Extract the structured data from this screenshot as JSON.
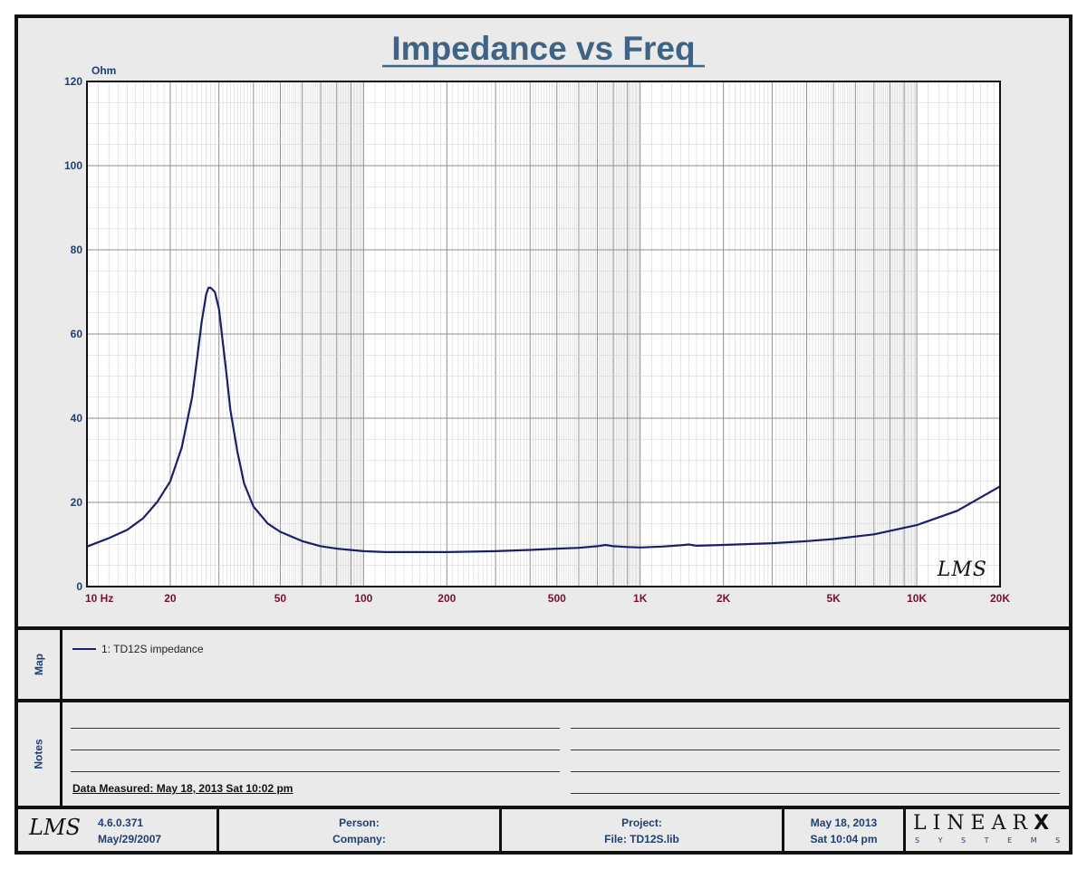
{
  "chart_data": {
    "type": "line",
    "title": "Impedance vs Freq",
    "xlabel": "",
    "ylabel": "Ohm",
    "x_scale": "log",
    "xlim": [
      10,
      20000
    ],
    "ylim": [
      0,
      120
    ],
    "y_ticks": [
      "0",
      "20",
      "40",
      "60",
      "80",
      "100",
      "120"
    ],
    "x_tick_labels": [
      {
        "f": 10,
        "label": "10  Hz"
      },
      {
        "f": 20,
        "label": "20"
      },
      {
        "f": 50,
        "label": "50"
      },
      {
        "f": 100,
        "label": "100"
      },
      {
        "f": 200,
        "label": "200"
      },
      {
        "f": 500,
        "label": "500"
      },
      {
        "f": 1000,
        "label": "1K"
      },
      {
        "f": 2000,
        "label": "2K"
      },
      {
        "f": 5000,
        "label": "5K"
      },
      {
        "f": 10000,
        "label": "10K"
      },
      {
        "f": 20000,
        "label": "20K"
      }
    ],
    "grid": true,
    "series": [
      {
        "name": "1: TD12S impedance",
        "color": "#1b1f6b",
        "x": [
          10,
          12,
          14,
          16,
          18,
          20,
          22,
          24,
          25,
          26,
          27,
          27.5,
          28,
          29,
          30,
          31,
          32,
          33,
          35,
          37,
          40,
          45,
          50,
          60,
          70,
          80,
          100,
          120,
          150,
          200,
          300,
          400,
          500,
          600,
          700,
          750,
          800,
          900,
          1000,
          1200,
          1400,
          1500,
          1600,
          2000,
          3000,
          4000,
          5000,
          7000,
          10000,
          14000,
          20000
        ],
        "y": [
          9.5,
          11.5,
          13.5,
          16.3,
          20.2,
          25,
          33,
          45,
          54,
          63,
          69.5,
          71,
          71,
          70,
          66,
          58,
          50,
          42,
          32,
          24.5,
          19,
          15,
          13,
          10.8,
          9.6,
          9,
          8.4,
          8.2,
          8.2,
          8.2,
          8.4,
          8.7,
          9,
          9.2,
          9.6,
          9.9,
          9.6,
          9.4,
          9.3,
          9.5,
          9.8,
          10,
          9.7,
          9.9,
          10.3,
          10.8,
          11.3,
          12.4,
          14.6,
          18,
          23.8
        ]
      }
    ]
  },
  "lms_mark": "LMS",
  "map": {
    "label": "Map",
    "entries": [
      "1: TD12S impedance"
    ]
  },
  "notes": {
    "label": "Notes",
    "data_measured": "Data Measured: May 18, 2013  Sat 10:02 pm"
  },
  "footer": {
    "logo": "LMS",
    "version": "4.6.0.371",
    "version_date": "May/29/2007",
    "person_label": "Person:",
    "company_label": "Company:",
    "project_label": "Project:",
    "file_label": "File: TD12S.lib",
    "date": "May 18, 2013",
    "time": "Sat 10:04 pm",
    "brand_top": "LINEAR",
    "brand_x": "X",
    "brand_bottom": "S Y S T E M S"
  },
  "colors": {
    "title": "#3e6384",
    "axis_y": "#1f3f73",
    "axis_x": "#7a1030",
    "curve": "#1b1f6b",
    "grid": "#b5b5b5"
  }
}
